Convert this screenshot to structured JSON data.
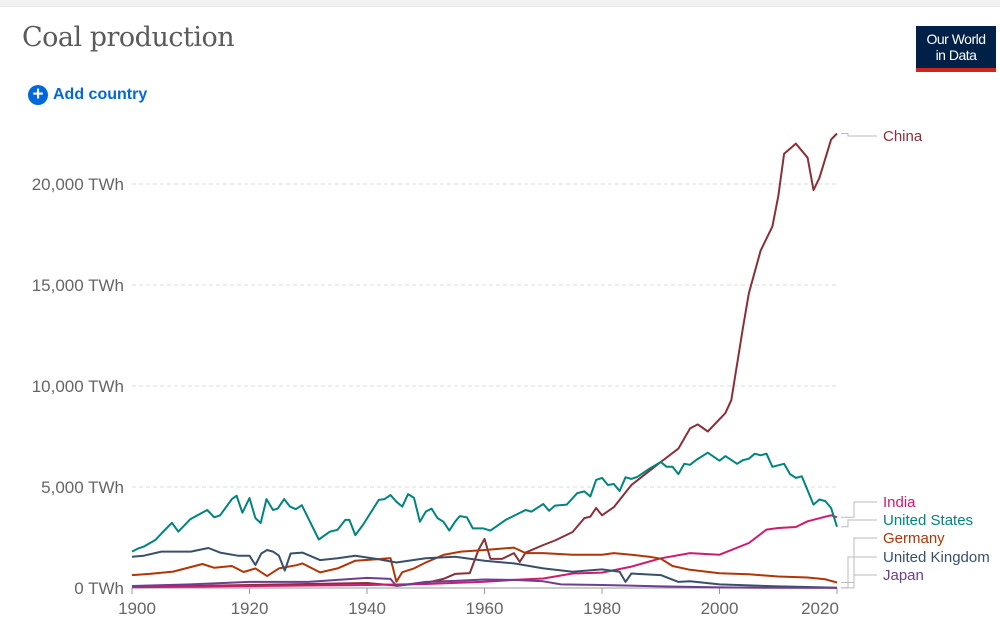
{
  "header": {
    "title": "Coal production",
    "logo_text": "Our World in Data",
    "add_country_label": "Add country",
    "add_icon": "plus-circle-icon"
  },
  "colors": {
    "accent": "#0068d9",
    "logo_bg": "#002147",
    "logo_bar": "#ce261e"
  },
  "chart_data": {
    "type": "line",
    "title": "Coal production",
    "xlabel": "",
    "ylabel": "",
    "xlim": [
      1900,
      2020
    ],
    "ylim": [
      0,
      22500
    ],
    "grid": "horizontal dashed",
    "legend": "right (inline labels)",
    "y_ticks": [
      {
        "v": 0,
        "label": "0 TWh"
      },
      {
        "v": 5000,
        "label": "5,000 TWh"
      },
      {
        "v": 10000,
        "label": "10,000 TWh"
      },
      {
        "v": 15000,
        "label": "15,000 TWh"
      },
      {
        "v": 20000,
        "label": "20,000 TWh"
      }
    ],
    "x_ticks": [
      {
        "v": 1900,
        "label": "1900"
      },
      {
        "v": 1920,
        "label": "1920"
      },
      {
        "v": 1940,
        "label": "1940"
      },
      {
        "v": 1960,
        "label": "1960"
      },
      {
        "v": 1980,
        "label": "1980"
      },
      {
        "v": 2000,
        "label": "2000"
      },
      {
        "v": 2020,
        "label": "2020"
      }
    ],
    "series": [
      {
        "name": "China",
        "color": "#883039",
        "points": [
          [
            1900,
            50
          ],
          [
            1910,
            100
          ],
          [
            1920,
            150
          ],
          [
            1930,
            200
          ],
          [
            1940,
            250
          ],
          [
            1945,
            120
          ],
          [
            1950,
            250
          ],
          [
            1953,
            450
          ],
          [
            1955,
            700
          ],
          [
            1957.5,
            740
          ],
          [
            1959,
            1900
          ],
          [
            1960,
            2430
          ],
          [
            1961,
            1440
          ],
          [
            1963,
            1440
          ],
          [
            1965,
            1730
          ],
          [
            1966,
            1290
          ],
          [
            1967,
            1750
          ],
          [
            1970,
            2130
          ],
          [
            1972,
            2350
          ],
          [
            1975,
            2770
          ],
          [
            1977,
            3460
          ],
          [
            1978,
            3530
          ],
          [
            1979,
            3960
          ],
          [
            1980,
            3600
          ],
          [
            1982,
            4000
          ],
          [
            1985,
            5100
          ],
          [
            1990,
            6240
          ],
          [
            1993,
            6900
          ],
          [
            1995,
            7900
          ],
          [
            1996.3,
            8100
          ],
          [
            1998,
            7750
          ],
          [
            2001,
            8660
          ],
          [
            2002,
            9300
          ],
          [
            2004,
            12900
          ],
          [
            2005,
            14600
          ],
          [
            2007,
            16700
          ],
          [
            2009,
            17900
          ],
          [
            2010,
            19400
          ],
          [
            2011,
            21500
          ],
          [
            2013,
            22000
          ],
          [
            2015,
            21300
          ],
          [
            2016,
            19700
          ],
          [
            2017,
            20300
          ],
          [
            2019,
            22200
          ],
          [
            2020,
            22500
          ]
        ]
      },
      {
        "name": "India",
        "color": "#d01a6c",
        "points": [
          [
            1900,
            40
          ],
          [
            1920,
            100
          ],
          [
            1940,
            150
          ],
          [
            1950,
            200
          ],
          [
            1960,
            310
          ],
          [
            1965,
            400
          ],
          [
            1970,
            470
          ],
          [
            1975,
            720
          ],
          [
            1980,
            760
          ],
          [
            1985,
            1060
          ],
          [
            1990,
            1470
          ],
          [
            1995,
            1730
          ],
          [
            2000,
            1650
          ],
          [
            2005,
            2230
          ],
          [
            2008,
            2890
          ],
          [
            2010,
            2970
          ],
          [
            2013,
            3020
          ],
          [
            2015,
            3300
          ],
          [
            2018,
            3530
          ],
          [
            2019,
            3600
          ],
          [
            2020,
            3500
          ]
        ]
      },
      {
        "name": "United States",
        "color": "#00847e",
        "points": [
          [
            1900,
            1800
          ],
          [
            1901,
            1950
          ],
          [
            1902,
            2050
          ],
          [
            1904,
            2380
          ],
          [
            1905,
            2700
          ],
          [
            1906.8,
            3230
          ],
          [
            1907.9,
            2790
          ],
          [
            1909.9,
            3400
          ],
          [
            1912.8,
            3860
          ],
          [
            1914,
            3500
          ],
          [
            1915,
            3600
          ],
          [
            1917,
            4400
          ],
          [
            1917.8,
            4570
          ],
          [
            1918.8,
            3730
          ],
          [
            1920,
            4450
          ],
          [
            1921,
            3460
          ],
          [
            1921.9,
            3220
          ],
          [
            1922.9,
            4400
          ],
          [
            1924,
            3860
          ],
          [
            1924.8,
            3930
          ],
          [
            1925.9,
            4400
          ],
          [
            1926.9,
            4030
          ],
          [
            1927.9,
            3900
          ],
          [
            1928.9,
            4100
          ],
          [
            1931.8,
            2400
          ],
          [
            1933.7,
            2790
          ],
          [
            1935,
            2880
          ],
          [
            1936.3,
            3370
          ],
          [
            1937,
            3370
          ],
          [
            1938,
            2620
          ],
          [
            1939.3,
            3120
          ],
          [
            1942,
            4360
          ],
          [
            1943,
            4400
          ],
          [
            1944,
            4600
          ],
          [
            1945,
            4270
          ],
          [
            1946,
            4030
          ],
          [
            1947,
            4650
          ],
          [
            1948,
            4460
          ],
          [
            1949,
            3280
          ],
          [
            1950,
            3780
          ],
          [
            1951,
            3930
          ],
          [
            1952,
            3460
          ],
          [
            1953,
            3280
          ],
          [
            1954,
            2840
          ],
          [
            1955,
            3280
          ],
          [
            1955.8,
            3560
          ],
          [
            1957,
            3500
          ],
          [
            1958,
            2950
          ],
          [
            1959.8,
            2950
          ],
          [
            1961,
            2840
          ],
          [
            1963.6,
            3370
          ],
          [
            1967,
            3860
          ],
          [
            1968,
            3780
          ],
          [
            1970,
            4160
          ],
          [
            1971,
            3820
          ],
          [
            1972,
            4080
          ],
          [
            1974,
            4130
          ],
          [
            1975.8,
            4700
          ],
          [
            1977,
            4780
          ],
          [
            1978,
            4530
          ],
          [
            1979,
            5350
          ],
          [
            1980,
            5450
          ],
          [
            1981,
            5100
          ],
          [
            1982,
            5150
          ],
          [
            1983,
            4800
          ],
          [
            1984,
            5480
          ],
          [
            1985,
            5400
          ],
          [
            1986,
            5500
          ],
          [
            1988,
            5890
          ],
          [
            1990,
            6240
          ],
          [
            1991,
            6000
          ],
          [
            1992,
            6000
          ],
          [
            1993,
            5640
          ],
          [
            1994,
            6150
          ],
          [
            1995,
            6100
          ],
          [
            1996,
            6330
          ],
          [
            1998,
            6700
          ],
          [
            2000,
            6300
          ],
          [
            2001,
            6530
          ],
          [
            2003,
            6150
          ],
          [
            2004,
            6330
          ],
          [
            2005,
            6400
          ],
          [
            2006,
            6650
          ],
          [
            2007,
            6570
          ],
          [
            2008,
            6650
          ],
          [
            2009,
            6000
          ],
          [
            2011,
            6150
          ],
          [
            2012,
            5640
          ],
          [
            2013,
            5450
          ],
          [
            2014,
            5530
          ],
          [
            2016,
            4130
          ],
          [
            2017,
            4380
          ],
          [
            2018,
            4300
          ],
          [
            2019,
            3960
          ],
          [
            2020,
            3030
          ]
        ]
      },
      {
        "name": "Germany",
        "color": "#b13507",
        "points": [
          [
            1900,
            640
          ],
          [
            1903,
            700
          ],
          [
            1907,
            810
          ],
          [
            1912,
            1190
          ],
          [
            1914,
            1000
          ],
          [
            1917,
            1090
          ],
          [
            1919,
            790
          ],
          [
            1921,
            968
          ],
          [
            1923,
            590
          ],
          [
            1925,
            968
          ],
          [
            1928,
            1130
          ],
          [
            1929,
            1220
          ],
          [
            1932,
            772
          ],
          [
            1935,
            968
          ],
          [
            1938,
            1350
          ],
          [
            1942,
            1430
          ],
          [
            1944,
            1480
          ],
          [
            1945,
            310
          ],
          [
            1946,
            780
          ],
          [
            1948,
            968
          ],
          [
            1950,
            1260
          ],
          [
            1953,
            1640
          ],
          [
            1956,
            1800
          ],
          [
            1960,
            1880
          ],
          [
            1965,
            2000
          ],
          [
            1967,
            1730
          ],
          [
            1970,
            1730
          ],
          [
            1975,
            1650
          ],
          [
            1980,
            1650
          ],
          [
            1982,
            1730
          ],
          [
            1985,
            1650
          ],
          [
            1988,
            1550
          ],
          [
            1990,
            1450
          ],
          [
            1992,
            1090
          ],
          [
            1995,
            900
          ],
          [
            2000,
            730
          ],
          [
            2005,
            680
          ],
          [
            2010,
            570
          ],
          [
            2015,
            520
          ],
          [
            2018,
            430
          ],
          [
            2020,
            270
          ]
        ]
      },
      {
        "name": "United Kingdom",
        "color": "#38506a",
        "points": [
          [
            1900,
            1550
          ],
          [
            1902,
            1600
          ],
          [
            1905,
            1800
          ],
          [
            1910,
            1800
          ],
          [
            1913,
            1980
          ],
          [
            1915,
            1750
          ],
          [
            1918,
            1600
          ],
          [
            1920,
            1600
          ],
          [
            1921,
            1140
          ],
          [
            1922,
            1710
          ],
          [
            1923,
            1880
          ],
          [
            1924,
            1800
          ],
          [
            1925,
            1600
          ],
          [
            1926,
            860
          ],
          [
            1927,
            1710
          ],
          [
            1929,
            1750
          ],
          [
            1932,
            1380
          ],
          [
            1935,
            1470
          ],
          [
            1938,
            1600
          ],
          [
            1942,
            1420
          ],
          [
            1945,
            1260
          ],
          [
            1950,
            1470
          ],
          [
            1955,
            1550
          ],
          [
            1960,
            1350
          ],
          [
            1965,
            1220
          ],
          [
            1970,
            970
          ],
          [
            1975,
            800
          ],
          [
            1980,
            920
          ],
          [
            1983,
            800
          ],
          [
            1984,
            300
          ],
          [
            1985,
            720
          ],
          [
            1990,
            640
          ],
          [
            1993,
            300
          ],
          [
            1995,
            330
          ],
          [
            2000,
            180
          ],
          [
            2005,
            130
          ],
          [
            2010,
            80
          ],
          [
            2015,
            50
          ],
          [
            2020,
            10
          ]
        ]
      },
      {
        "name": "Japan",
        "color": "#6d3e91",
        "points": [
          [
            1900,
            100
          ],
          [
            1910,
            180
          ],
          [
            1920,
            300
          ],
          [
            1930,
            300
          ],
          [
            1940,
            500
          ],
          [
            1944,
            450
          ],
          [
            1945,
            100
          ],
          [
            1950,
            300
          ],
          [
            1955,
            350
          ],
          [
            1960,
            420
          ],
          [
            1965,
            400
          ],
          [
            1970,
            330
          ],
          [
            1973,
            180
          ],
          [
            1980,
            150
          ],
          [
            1990,
            80
          ],
          [
            2000,
            30
          ],
          [
            2010,
            10
          ],
          [
            2020,
            5
          ]
        ]
      }
    ]
  }
}
